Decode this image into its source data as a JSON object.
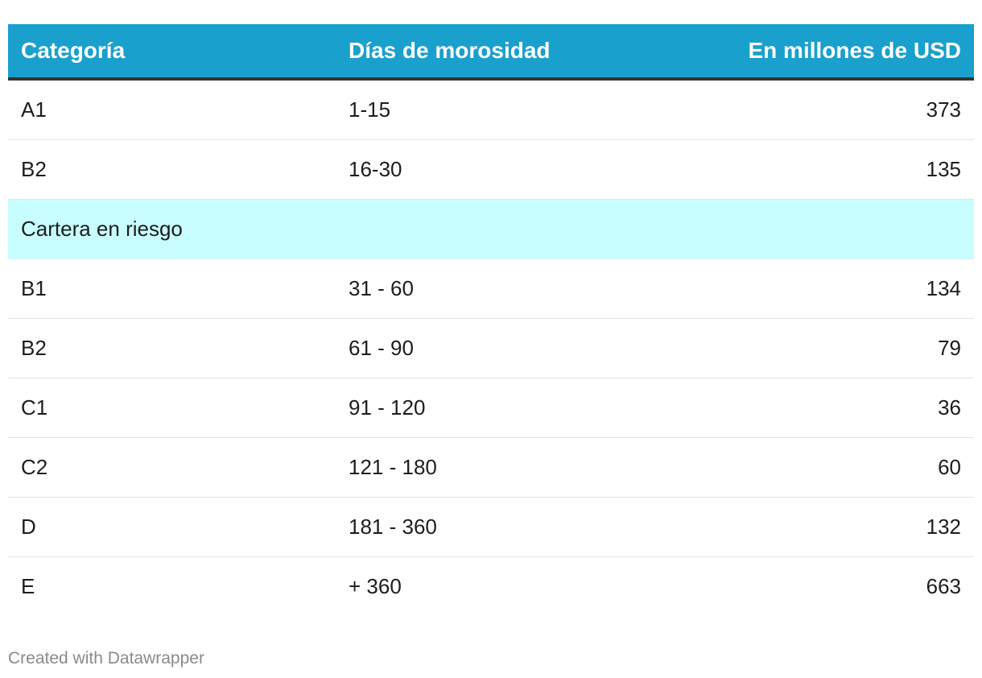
{
  "chart_data": {
    "type": "table",
    "columns": [
      "Categoría",
      "Días de morosidad",
      "En millones de USD"
    ],
    "rows": [
      {
        "categoria": "A1",
        "dias": "1-15",
        "valor": "373"
      },
      {
        "categoria": "B2",
        "dias": "16-30",
        "valor": "135"
      },
      {
        "group": "Cartera en riesgo"
      },
      {
        "categoria": "B1",
        "dias": "31 - 60",
        "valor": "134"
      },
      {
        "categoria": "B2",
        "dias": "61 - 90",
        "valor": "79"
      },
      {
        "categoria": "C1",
        "dias": "91 - 120",
        "valor": "36"
      },
      {
        "categoria": "C2",
        "dias": "121 - 180",
        "valor": "60"
      },
      {
        "categoria": "D",
        "dias": "181 - 360",
        "valor": "132"
      },
      {
        "categoria": "E",
        "dias": "+ 360",
        "valor": "663"
      }
    ],
    "colors": {
      "header_bg": "#1aa0cc",
      "header_text": "#ffffff",
      "group_row_bg": "#c8feff"
    }
  },
  "footer": {
    "credit": "Created with Datawrapper"
  }
}
